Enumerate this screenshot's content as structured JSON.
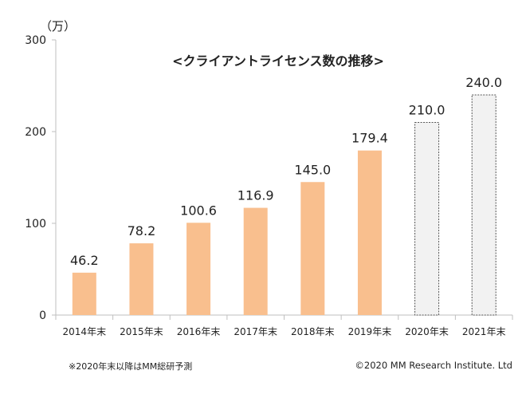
{
  "chart_data": {
    "type": "bar",
    "title": "<クライアントライセンス数の推移>",
    "unit_label": "（万）",
    "categories": [
      "2014年末",
      "2015年末",
      "2016年末",
      "2017年末",
      "2018年末",
      "2019年末",
      "2020年末",
      "2021年末"
    ],
    "values": [
      46.2,
      78.2,
      100.6,
      116.9,
      145.0,
      179.4,
      210.0,
      240.0
    ],
    "value_labels": [
      "46.2",
      "78.2",
      "100.6",
      "116.9",
      "145.0",
      "179.4",
      "210.0",
      "240.0"
    ],
    "forecast": [
      false,
      false,
      false,
      false,
      false,
      false,
      true,
      true
    ],
    "ylim": [
      0,
      300
    ],
    "yticks": [
      0,
      100,
      200,
      300
    ],
    "grid": false,
    "colors": {
      "actual": "#F9BF8E",
      "forecast_fill": "#F2F2F2",
      "forecast_stroke": "#555555",
      "axis": "#BFBFBF"
    }
  },
  "footnote": "※2020年末以降はMM総研予測",
  "credit": "©2020 MM Research Institute. Ltd"
}
